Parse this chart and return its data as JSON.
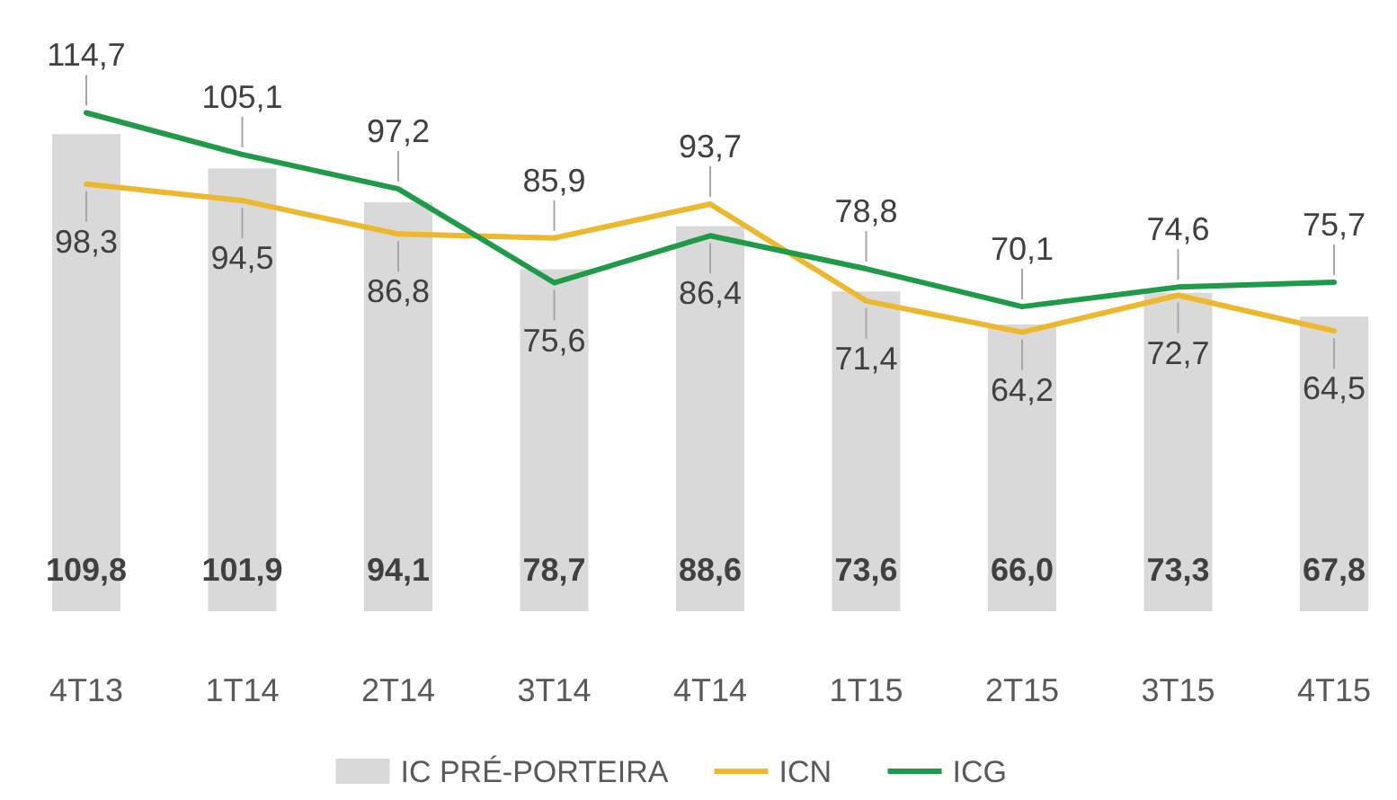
{
  "chart_data": {
    "type": "bar",
    "categories": [
      "4T13",
      "1T14",
      "2T14",
      "3T14",
      "4T14",
      "1T15",
      "2T15",
      "3T15",
      "4T15"
    ],
    "series": [
      {
        "name": "IC PRÉ-PORTEIRA",
        "color": "#d9d9d9",
        "values": [
          109.8,
          101.9,
          94.1,
          78.7,
          88.6,
          73.6,
          66.0,
          73.3,
          67.8
        ],
        "value_labels": [
          "109,8",
          "101,9",
          "94,1",
          "78,7",
          "88,6",
          "73,6",
          "66,0",
          "73,3",
          "67,8"
        ]
      },
      {
        "name": "ICN",
        "type": "line",
        "color": "#ebb82e",
        "values": [
          98.3,
          94.5,
          86.8,
          85.9,
          93.7,
          71.4,
          64.2,
          72.7,
          64.5
        ],
        "value_labels": [
          "98,3",
          "94,5",
          "86,8",
          "85,9",
          "93,7",
          "71,4",
          "64,2",
          "72,7",
          "64,5"
        ]
      },
      {
        "name": "ICG",
        "type": "line",
        "color": "#1f9a48",
        "values": [
          114.7,
          105.1,
          97.2,
          75.6,
          86.4,
          78.8,
          70.1,
          74.6,
          75.7
        ],
        "value_labels": [
          "114,7",
          "105,1",
          "97,2",
          "75,6",
          "86,4",
          "78,8",
          "70,1",
          "74,6",
          "75,7"
        ]
      }
    ],
    "legend": "bottom",
    "grid": false
  }
}
